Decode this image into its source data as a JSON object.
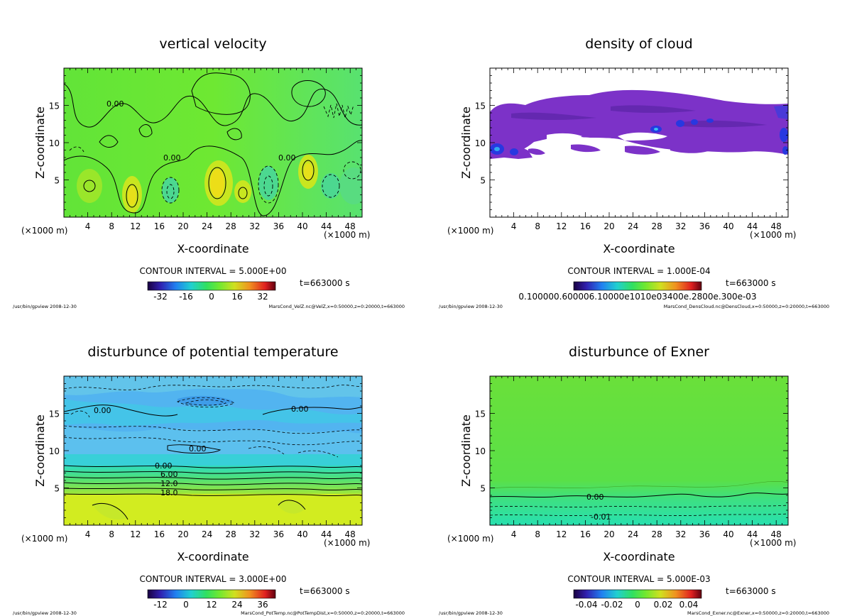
{
  "colors": {
    "velocity_bg": "#6ee832",
    "velocity_pos": "#d4e61c",
    "velocity_neg": "#48d884",
    "cloud_purple": "#7c32c8",
    "cloud_blue": "#2838e0",
    "temp_blue": "#52b4f0",
    "temp_cyan": "#30d8c8",
    "temp_yellow": "#d2ec20",
    "exner_green": "#56e040",
    "exner_teal": "#2ee0a8"
  },
  "chart_data": [
    {
      "type": "contour",
      "title": "vertical velocity",
      "xlabel": "X-coordinate",
      "ylabel": "Z-coordinate",
      "x_unit": "(×1000 m)",
      "xticks": [
        "4",
        "8",
        "12",
        "16",
        "20",
        "24",
        "28",
        "32",
        "36",
        "40",
        "44",
        "48"
      ],
      "yticks": [
        "5",
        "10",
        "15"
      ],
      "xlim": [
        0,
        50
      ],
      "ylim": [
        0,
        20
      ],
      "contour_interval": "CONTOUR INTERVAL = 5.000E+00",
      "time": "t=663000 s",
      "colorbar_ticks": [
        "-32",
        "-16",
        "0",
        "16",
        "32"
      ],
      "contour_labels": [
        "0.00",
        "0.00",
        "0.00"
      ],
      "footer_left": "/usr/bin/gpview  2008-12-30",
      "footer_right": "MarsCond_VelZ.nc@VelZ,x=0:50000,z=0:20000,t=663000"
    },
    {
      "type": "contour",
      "title": "density of cloud",
      "xlabel": "X-coordinate",
      "ylabel": "Z-coordinate",
      "x_unit": "(×1000 m)",
      "xticks": [
        "4",
        "8",
        "12",
        "16",
        "20",
        "24",
        "28",
        "32",
        "36",
        "40",
        "44",
        "48"
      ],
      "yticks": [
        "5",
        "10",
        "15"
      ],
      "xlim": [
        0,
        50
      ],
      "ylim": [
        0,
        20
      ],
      "contour_interval": "CONTOUR INTERVAL = 1.000E-04",
      "time": "t=663000 s",
      "colorbar_ticks": [
        "0.100000.600006.10000e1010e03400e.2800e.300e-03"
      ],
      "footer_left": "/usr/bin/gpview  2008-12-30",
      "footer_right": "MarsCond_DensCloud.nc@DensCloud,x=0:50000,z=0:20000,t=663000"
    },
    {
      "type": "contour",
      "title": "disturbunce of potential temperature",
      "xlabel": "X-coordinate",
      "ylabel": "Z-coordinate",
      "x_unit": "(×1000 m)",
      "xticks": [
        "4",
        "8",
        "12",
        "16",
        "20",
        "24",
        "28",
        "32",
        "36",
        "40",
        "44",
        "48"
      ],
      "yticks": [
        "5",
        "10",
        "15"
      ],
      "xlim": [
        0,
        50
      ],
      "ylim": [
        0,
        20
      ],
      "contour_interval": "CONTOUR INTERVAL = 3.000E+00",
      "time": "t=663000 s",
      "colorbar_ticks": [
        "-12",
        "0",
        "12",
        "24",
        "36"
      ],
      "contour_labels": [
        "0.00",
        "0.00",
        "0.00",
        "0.00",
        "6.00",
        "12.0",
        "18.0"
      ],
      "footer_left": "/usr/bin/gpview  2008-12-30",
      "footer_right": "MarsCond_PotTemp.nc@PotTempDist,x=0:50000,z=0:20000,t=663000"
    },
    {
      "type": "contour",
      "title": "disturbunce of Exner",
      "xlabel": "X-coordinate",
      "ylabel": "Z-coordinate",
      "x_unit": "(×1000 m)",
      "xticks": [
        "4",
        "8",
        "12",
        "16",
        "20",
        "24",
        "28",
        "32",
        "36",
        "40",
        "44",
        "48"
      ],
      "yticks": [
        "5",
        "10",
        "15"
      ],
      "xlim": [
        0,
        50
      ],
      "ylim": [
        0,
        20
      ],
      "contour_interval": "CONTOUR INTERVAL = 5.000E-03",
      "time": "t=663000 s",
      "colorbar_ticks": [
        "-0.04",
        "-0.02",
        "0",
        "0.02",
        "0.04"
      ],
      "contour_labels": [
        "0.00",
        "-0.01"
      ],
      "footer_left": "/usr/bin/gpview  2008-12-30",
      "footer_right": "MarsCond_Exner.nc@Exner,x=0:50000,z=0:20000,t=663000"
    }
  ]
}
